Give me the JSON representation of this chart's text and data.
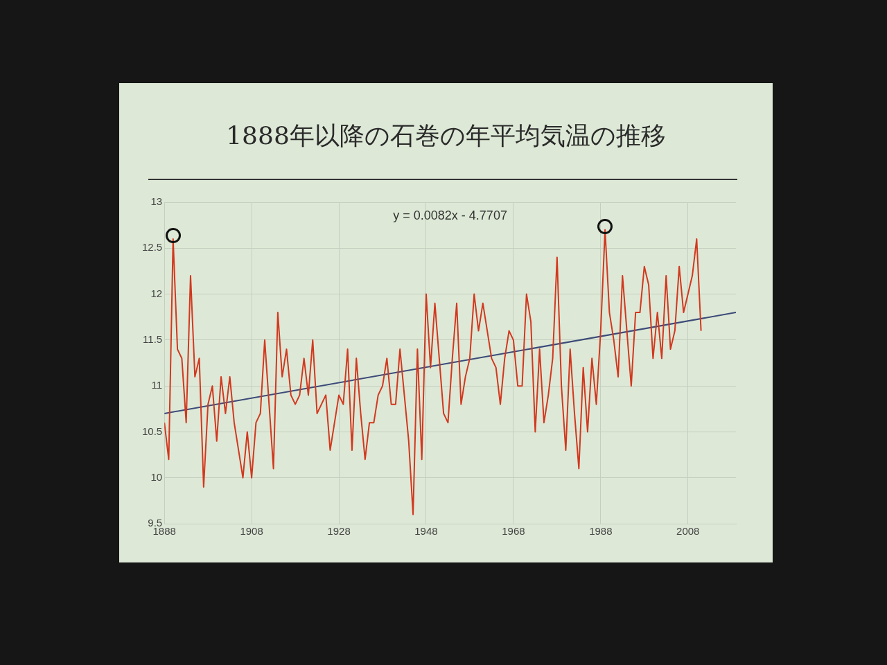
{
  "chart_data": {
    "type": "line",
    "title": "1888年以降の石巻の年平均気温の推移",
    "x": [
      1888,
      1889,
      1890,
      1891,
      1892,
      1893,
      1894,
      1895,
      1896,
      1897,
      1898,
      1899,
      1900,
      1901,
      1902,
      1903,
      1904,
      1905,
      1906,
      1907,
      1908,
      1909,
      1910,
      1911,
      1912,
      1913,
      1914,
      1915,
      1916,
      1917,
      1918,
      1919,
      1920,
      1921,
      1922,
      1923,
      1924,
      1925,
      1926,
      1927,
      1928,
      1929,
      1930,
      1931,
      1932,
      1933,
      1934,
      1935,
      1936,
      1937,
      1938,
      1939,
      1940,
      1941,
      1942,
      1943,
      1944,
      1945,
      1946,
      1947,
      1948,
      1949,
      1950,
      1951,
      1952,
      1953,
      1954,
      1955,
      1956,
      1957,
      1958,
      1959,
      1960,
      1961,
      1962,
      1963,
      1964,
      1965,
      1966,
      1967,
      1968,
      1969,
      1970,
      1971,
      1972,
      1973,
      1974,
      1975,
      1976,
      1977,
      1978,
      1979,
      1980,
      1981,
      1982,
      1983,
      1984,
      1985,
      1986,
      1987,
      1988,
      1989,
      1990,
      1991,
      1992,
      1993,
      1994,
      1995,
      1996,
      1997,
      1998,
      1999,
      2000,
      2001,
      2002,
      2003,
      2004,
      2005,
      2006,
      2007,
      2008,
      2009,
      2010,
      2011
    ],
    "series": [
      {
        "color": "#d2381e",
        "values": [
          10.6,
          10.2,
          12.6,
          11.4,
          11.3,
          10.6,
          12.2,
          11.1,
          11.3,
          9.9,
          10.8,
          11.0,
          10.4,
          11.1,
          10.7,
          11.1,
          10.6,
          10.3,
          10.0,
          10.5,
          10.0,
          10.6,
          10.7,
          11.5,
          10.8,
          10.1,
          11.8,
          11.1,
          11.4,
          10.9,
          10.8,
          10.9,
          11.3,
          10.9,
          11.5,
          10.7,
          10.8,
          10.9,
          10.3,
          10.6,
          10.9,
          10.8,
          11.4,
          10.3,
          11.3,
          10.7,
          10.2,
          10.6,
          10.6,
          10.9,
          11.0,
          11.3,
          10.8,
          10.8,
          11.4,
          10.9,
          10.4,
          9.6,
          11.4,
          10.2,
          12.0,
          11.2,
          11.9,
          11.3,
          10.7,
          10.6,
          11.3,
          11.9,
          10.8,
          11.1,
          11.3,
          12.0,
          11.6,
          11.9,
          11.6,
          11.3,
          11.2,
          10.8,
          11.3,
          11.6,
          11.5,
          11.0,
          11.0,
          12.0,
          11.7,
          10.5,
          11.4,
          10.6,
          10.9,
          11.3,
          12.4,
          11.0,
          10.3,
          11.4,
          10.7,
          10.1,
          11.2,
          10.5,
          11.3,
          10.8,
          11.6,
          12.7,
          11.8,
          11.5,
          11.1,
          12.2,
          11.6,
          11.0,
          11.8,
          11.8,
          12.3,
          12.1,
          11.3,
          11.8,
          11.3,
          12.2,
          11.4,
          11.6,
          12.3,
          11.8,
          12.0,
          12.2,
          12.6,
          11.6
        ]
      },
      {
        "type": "line",
        "color": "#3b4a78",
        "x": [
          1888,
          2019
        ],
        "values": [
          10.7,
          11.8
        ]
      }
    ],
    "xlim": [
      1888,
      2019
    ],
    "xticks": [
      1888,
      1908,
      1928,
      1948,
      1968,
      1988,
      2008
    ],
    "ylim": [
      9.5,
      13
    ],
    "yticks": [
      9.5,
      10,
      10.5,
      11,
      11.5,
      12,
      12.5,
      13
    ],
    "annotations": [
      "y = 0.0082x - 4.7707"
    ],
    "grid": true,
    "legend": false,
    "marker": "none",
    "line_style": "solid"
  }
}
